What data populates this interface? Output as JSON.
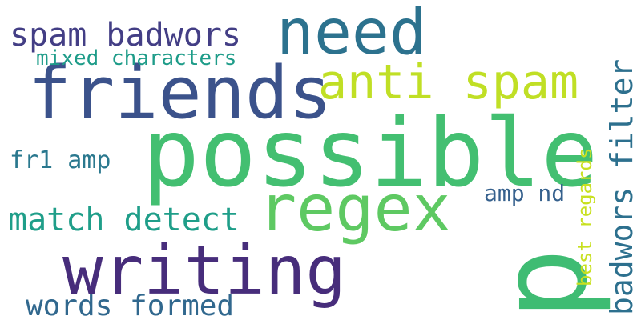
{
  "cloud": {
    "words": [
      {
        "text": "possible",
        "color": "#43bf71"
      },
      {
        "text": "need",
        "color": "#2c728e"
      },
      {
        "text": "friends",
        "color": "#3b528b"
      },
      {
        "text": "writing",
        "color": "#472d7b"
      },
      {
        "text": "regex",
        "color": "#5ec962"
      },
      {
        "text": "anti spam",
        "color": "#c0df25"
      },
      {
        "text": "spam badwors",
        "color": "#433e85"
      },
      {
        "text": "mixed characters",
        "color": "#1e9c89"
      },
      {
        "text": "match detect",
        "color": "#1f9e89"
      },
      {
        "text": "words formed",
        "color": "#31688e"
      },
      {
        "text": "fr1 amp",
        "color": "#2a788e"
      },
      {
        "text": "amp nd",
        "color": "#35608d"
      },
      {
        "text": "p",
        "color": "#3fbc73"
      },
      {
        "text": "badwors filter",
        "color": "#2d708e"
      },
      {
        "text": "best regards",
        "color": "#c8e020"
      }
    ]
  }
}
